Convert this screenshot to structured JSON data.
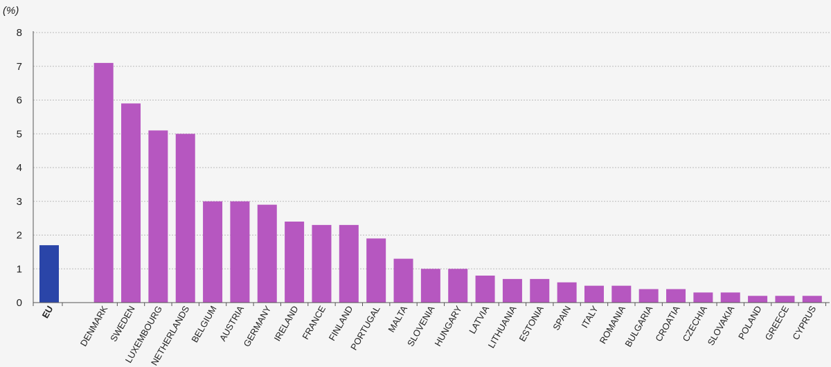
{
  "chart_data": {
    "type": "bar",
    "unit": "(%)",
    "categories": [
      "EU",
      "DENMARK",
      "SWEDEN",
      "LUXEMBOURG",
      "NETHERLANDS",
      "BELGIUM",
      "AUSTRIA",
      "GERMANY",
      "IRELAND",
      "FRANCE",
      "FINLAND",
      "PORTUGAL",
      "MALTA",
      "SLOVENIA",
      "HUNGARY",
      "LATVIA",
      "LITHUANIA",
      "ESTONIA",
      "SPAIN",
      "ITALY",
      "ROMANIA",
      "BULGARIA",
      "CROATIA",
      "CZECHIA",
      "SLOVAKIA",
      "POLAND",
      "GREECE",
      "CYPRUS"
    ],
    "values": [
      1.7,
      7.1,
      5.9,
      5.1,
      5.0,
      3.0,
      3.0,
      2.9,
      2.4,
      2.3,
      2.3,
      1.9,
      1.3,
      1.0,
      1.0,
      0.8,
      0.7,
      0.7,
      0.6,
      0.5,
      0.5,
      0.4,
      0.4,
      0.3,
      0.3,
      0.2,
      0.2,
      0.2
    ],
    "ylim": [
      0,
      8
    ],
    "yticks": [
      "0",
      "1",
      "2",
      "3",
      "4",
      "5",
      "6",
      "7",
      "8"
    ],
    "grid": true,
    "colors": {
      "eu": "#2a45a8",
      "country": "#b657c0",
      "grid": "#bbbbbb",
      "axis": "#555555"
    }
  }
}
